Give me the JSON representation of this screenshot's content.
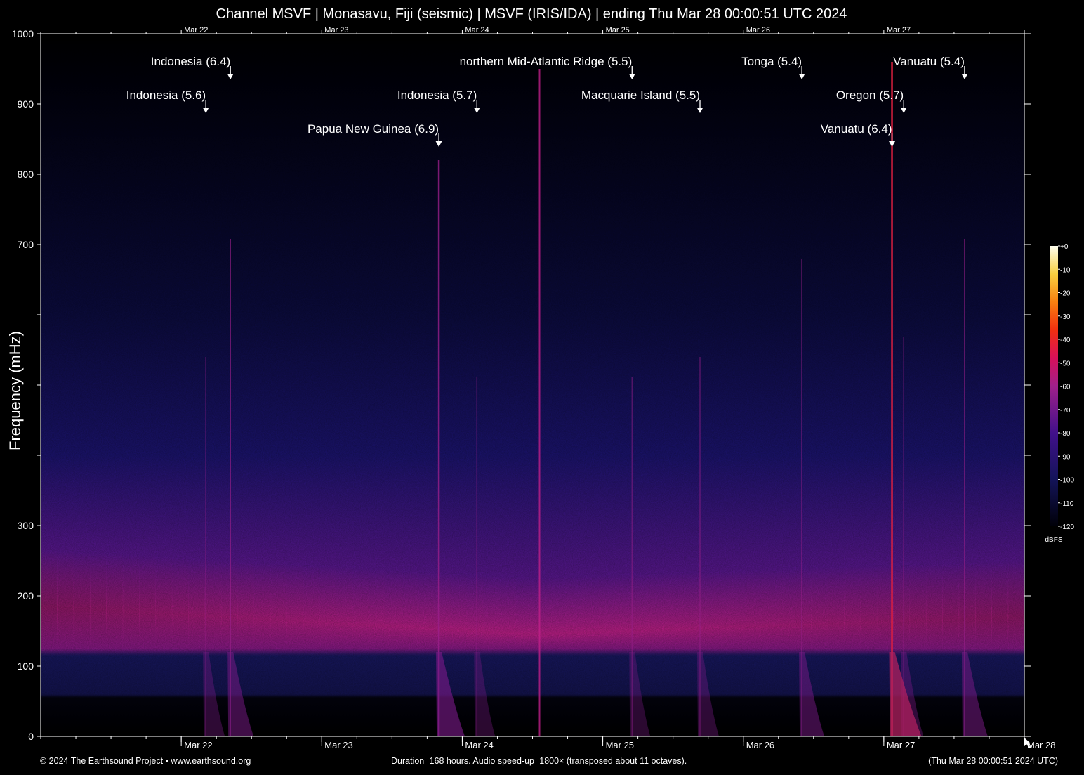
{
  "title": "Channel MSVF | Monasavu, Fiji (seismic) | MSVF (IRIS/IDA) | ending Thu Mar 28 00:00:51 UTC 2024",
  "footer": {
    "left": "© 2024 The Earthsound Project • www.earthsound.org",
    "middle": "Duration=168 hours. Audio speed-up=1800× (transposed about 11 octaves).",
    "right": "(Thu Mar 28 00:00:51 2024 UTC)"
  },
  "colors": {
    "background": "#000000",
    "axis": "#ffffff",
    "noise_band": "#c0208a",
    "low_band": "#1a1a70"
  },
  "chart_data": {
    "type": "heatmap",
    "title": "Channel MSVF | Monasavu, Fiji (seismic) | MSVF (IRIS/IDA) | ending Thu Mar 28 00:00:51 UTC 2024",
    "xlabel": "",
    "ylabel": "Frequency (mHz)",
    "x_unit": "hours",
    "xlim_hours": [
      0,
      168
    ],
    "ylim": [
      0,
      1000
    ],
    "y_ticks": [
      0,
      100,
      200,
      300,
      400,
      500,
      600,
      700,
      800,
      900,
      1000
    ],
    "y_tick_labels": [
      "0",
      "100",
      "200",
      "300",
      "",
      "",
      "",
      "700",
      "800",
      "900",
      "1000"
    ],
    "x_day_ticks": [
      {
        "label": "Mar 22",
        "hour": 24
      },
      {
        "label": "Mar 23",
        "hour": 48
      },
      {
        "label": "Mar 24",
        "hour": 72
      },
      {
        "label": "Mar 25",
        "hour": 96
      },
      {
        "label": "Mar 26",
        "hour": 120
      },
      {
        "label": "Mar 27",
        "hour": 144
      },
      {
        "label": "Mar 28",
        "hour": 168
      }
    ],
    "x_top_labels": [
      "Mar 22",
      "Mar 23",
      "Mar 24",
      "Mar 25",
      "Mar 26",
      "Mar 27"
    ],
    "minor_tick_hours": 6,
    "colorbar": {
      "label": "dBFS",
      "ticks": [
        "+0",
        "-10",
        "-20",
        "-30",
        "-40",
        "-50",
        "-60",
        "-70",
        "-80",
        "-90",
        "-100",
        "-110",
        "-120"
      ],
      "range": [
        -120,
        0
      ]
    },
    "background_spectrum": {
      "peak_mhz_start": 185,
      "peak_mhz_mid": 145,
      "peak_mhz_end": 170,
      "low_band_mhz": [
        60,
        115
      ]
    },
    "events": [
      {
        "label": "Indonesia (6.4)",
        "hour": 32.4,
        "level": 1,
        "strength": 0.55
      },
      {
        "label": "Indonesia (5.6)",
        "hour": 28.2,
        "level": 2,
        "strength": 0.25
      },
      {
        "label": "Papua New Guinea (6.9)",
        "hour": 68.0,
        "level": 3,
        "strength": 0.75
      },
      {
        "label": "Indonesia (5.7)",
        "hour": 74.5,
        "level": 2,
        "strength": 0.2
      },
      {
        "label": "northern Mid-Atlantic Ridge (5.5)",
        "hour": 101.0,
        "level": 1,
        "strength": 0.2
      },
      {
        "label": "Macquarie Island (5.5)",
        "hour": 112.6,
        "level": 2,
        "strength": 0.25
      },
      {
        "label": "Tonga (5.4)",
        "hour": 130.0,
        "level": 1,
        "strength": 0.5
      },
      {
        "label": "Oregon (5.7)",
        "hour": 147.4,
        "level": 2,
        "strength": 0.3
      },
      {
        "label": "Vanuatu (6.4)",
        "hour": 145.4,
        "level": 3,
        "strength": 1.0
      },
      {
        "label": "Vanuatu (5.4)",
        "hour": 157.8,
        "level": 1,
        "strength": 0.55
      }
    ],
    "streaks": [
      {
        "hour": 85.2,
        "strength": 0.8
      }
    ]
  }
}
